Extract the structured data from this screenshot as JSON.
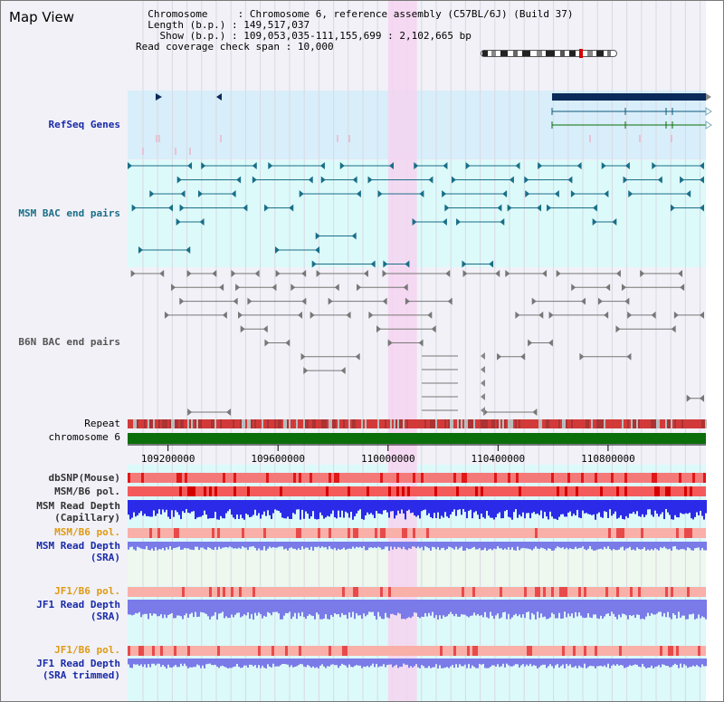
{
  "page": {
    "title": "Map View"
  },
  "info": {
    "chromosome_label": "Chromosome",
    "chromosome_value": "Chromosome 6, reference assembly (C57BL/6J) (Build 37)",
    "length_label": "Length (b.p.)",
    "length_value": "149,517,037",
    "show_label": "Show (b.p.)",
    "show_value": "109,053,035-111,155,699 : 2,102,665 bp",
    "coverage_label": "Read coverage check span",
    "coverage_value": "10,000"
  },
  "tracks": {
    "refseq_genes": "RefSeq Genes",
    "msm_bac": "MSM BAC end pairs",
    "b6n_bac": "B6N BAC end pairs",
    "repeat": "Repeat",
    "chromosome": "chromosome 6",
    "dbsnp": "dbSNP(Mouse)",
    "msm_b6_pol_1": "MSM/B6 pol.",
    "msm_read_depth_cap_1": "MSM Read Depth",
    "msm_read_depth_cap_2": "(Capillary)",
    "msm_b6_pol_2": "MSM/B6 pol.",
    "msm_read_depth_sra_1": "MSM Read Depth",
    "msm_read_depth_sra_2": "(SRA)",
    "jf1_b6_pol_1": "JF1/B6 pol.",
    "jf1_read_depth_sra_1": "JF1 Read Depth",
    "jf1_read_depth_sra_2": "(SRA)",
    "jf1_b6_pol_2": "JF1/B6 pol.",
    "jf1_read_depth_trim_1": "JF1 Read Depth",
    "jf1_read_depth_trim_2": "(SRA trimmed)"
  },
  "axis": {
    "ticks": [
      "109200000",
      "109600000",
      "110000000",
      "110400000",
      "110800000"
    ],
    "tick_values": [
      109200000,
      109600000,
      110000000,
      110400000,
      110800000
    ],
    "range": [
      109053035,
      111155699
    ]
  },
  "highlight": {
    "start": 110000000,
    "end": 110105000
  },
  "colors": {
    "refseq_bg": "#d8eefa",
    "msm_bg": "#dcfafa",
    "b6n_bg": "#f1f1f7",
    "lower_bg": "#dcfafa",
    "sra_bg": "#eef8ee",
    "highlight": "#f6d3f0",
    "teal": "#1a6e88",
    "gray": "#666666",
    "navy_gene": "#0a2a5a",
    "repeat_red": "#d23a3a",
    "chrom_green": "#0a6e0a",
    "snp_red": "#e84a4a",
    "depth_blue": "#2a2ae8",
    "depth_light": "#7a7ae8"
  }
}
